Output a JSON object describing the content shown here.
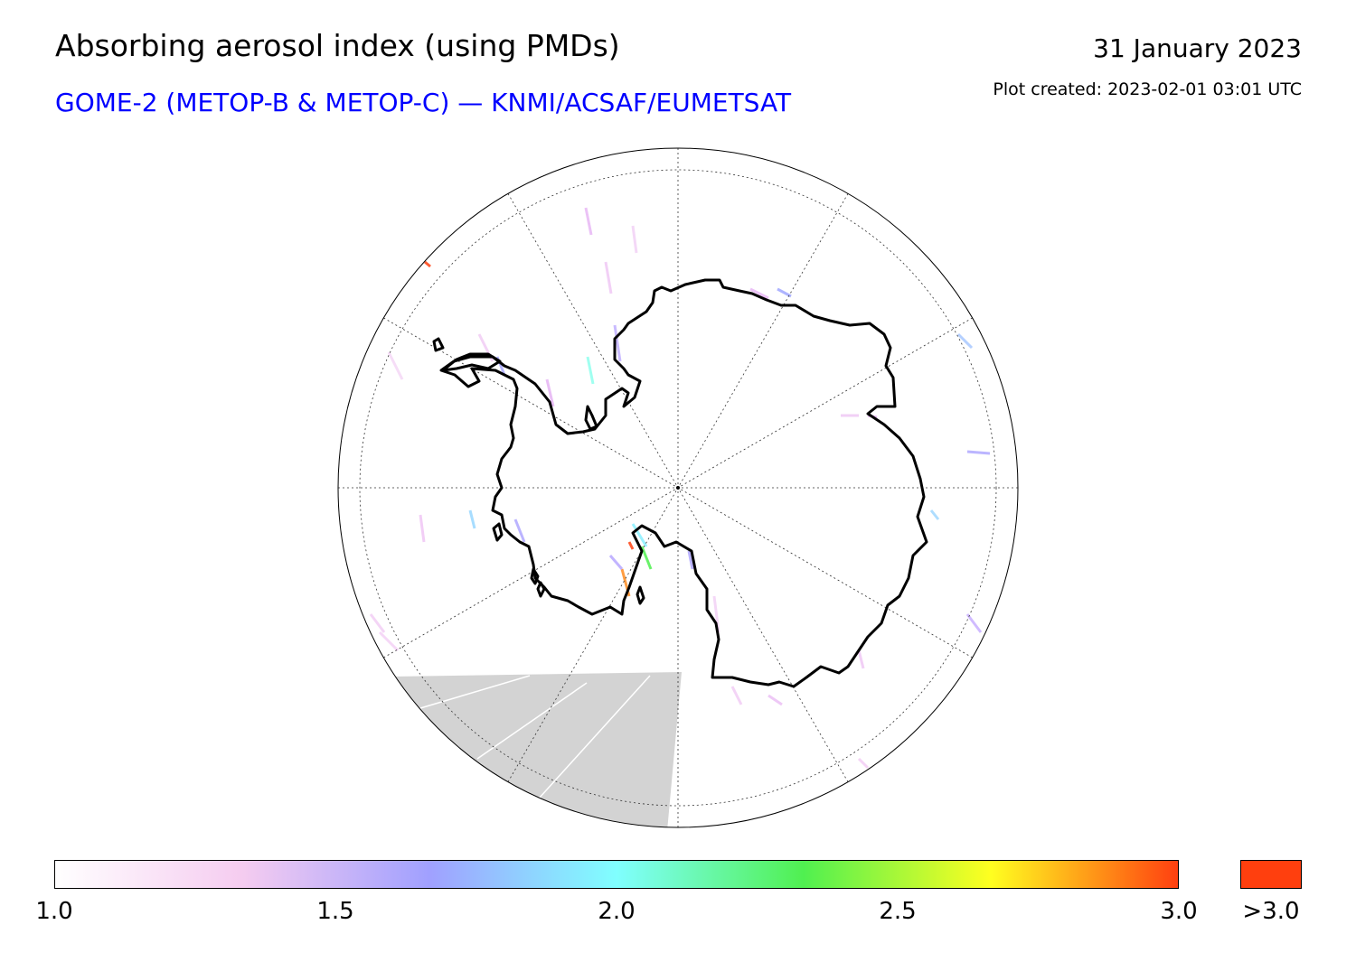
{
  "header": {
    "title": "Absorbing aerosol index (using PMDs)",
    "subtitle": "GOME-2 (METOP-B & METOP-C) — KNMI/ACSAF/EUMETSAT",
    "date": "31 January 2023",
    "created": "Plot created: 2023-02-01 03:01 UTC"
  },
  "map": {
    "projection": "south-polar-stereographic",
    "region": "Antarctica",
    "no_data_color": "#d3d3d3",
    "coastline_color": "#000000"
  },
  "colorbar": {
    "min": 1.0,
    "max": 3.0,
    "ticks": [
      "1.0",
      "1.5",
      "2.0",
      "2.5",
      "3.0"
    ],
    "overflow_label": ">3.0",
    "overflow_color": "#ff3f0e",
    "stops": [
      "#ffffff",
      "#f5ccf0",
      "#a0a0ff",
      "#80ffff",
      "#50f050",
      "#ffff20",
      "#ff4010"
    ]
  }
}
